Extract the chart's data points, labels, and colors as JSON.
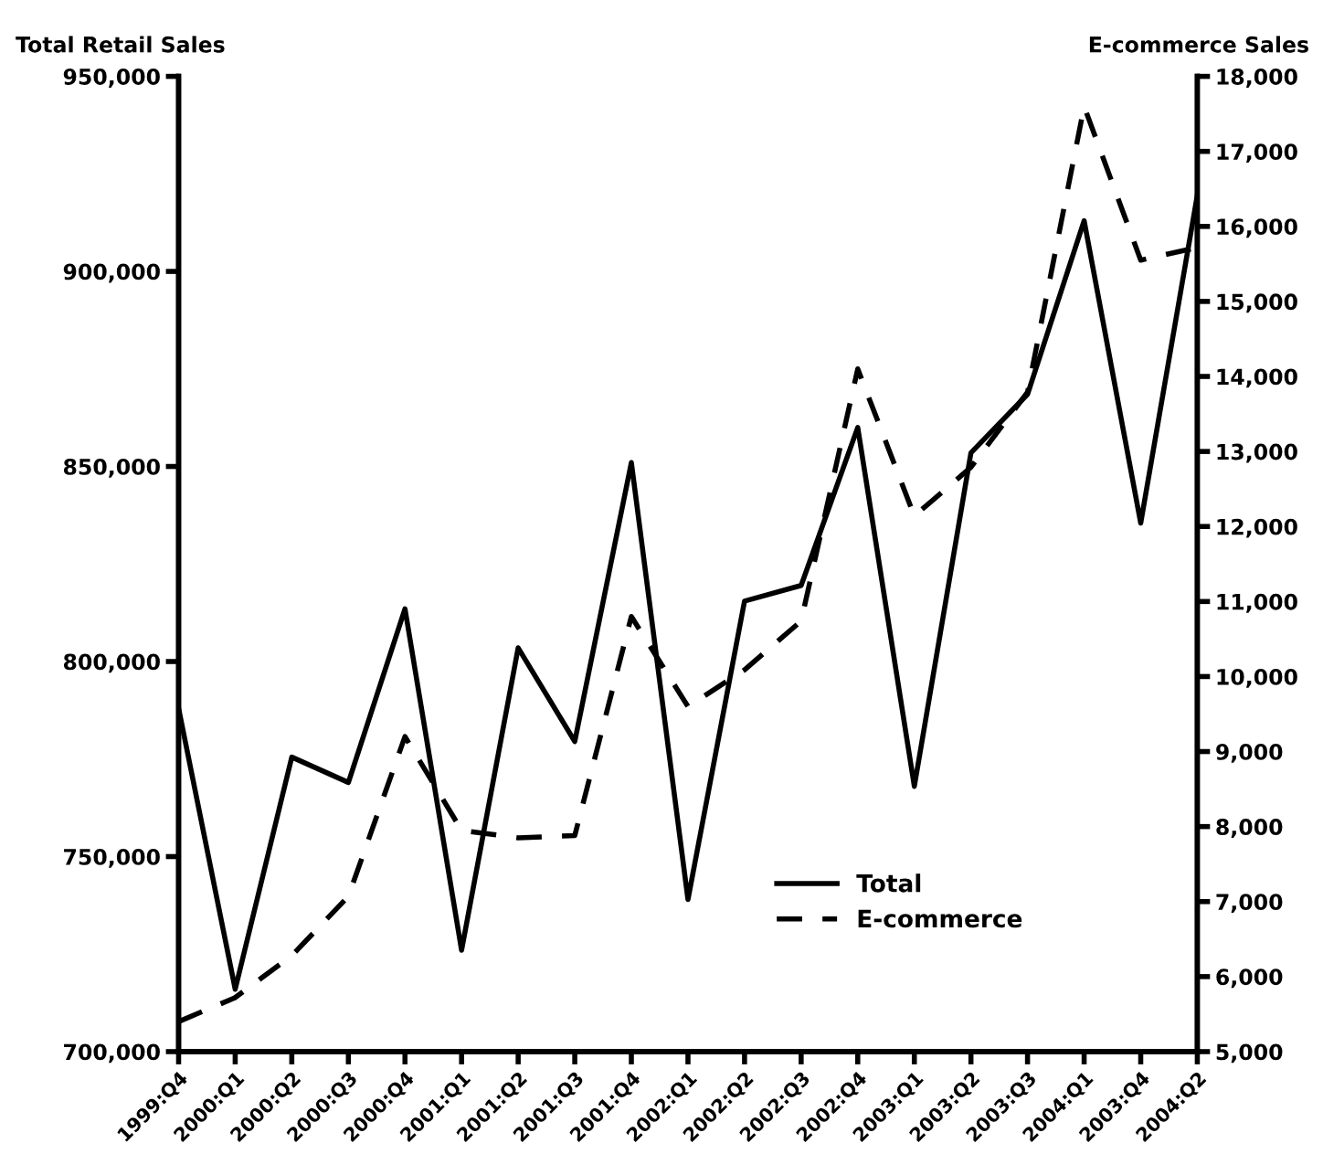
{
  "chart_data": {
    "type": "line",
    "ylabel": "Total Retail Sales",
    "y2label": "E-commerce Sales",
    "categories": [
      "1999:Q4",
      "2000:Q1",
      "2000:Q2",
      "2000:Q3",
      "2000:Q4",
      "2001:Q1",
      "2001:Q2",
      "2001:Q3",
      "2001:Q4",
      "2002:Q1",
      "2002:Q2",
      "2002:Q3",
      "2002:Q4",
      "2003:Q1",
      "2003:Q2",
      "2003:Q3",
      "2004:Q1",
      "2003:Q4",
      "2004:Q2"
    ],
    "series": [
      {
        "name": "Total",
        "color": "#000000",
        "line_style": "solid",
        "values": [
          788000,
          716000,
          775500,
          769000,
          813500,
          726000,
          803500,
          779500,
          851000,
          739000,
          815500,
          819500,
          860000,
          768000,
          853500,
          868500,
          913000,
          835500,
          919500
        ]
      },
      {
        "name": "E-commerce",
        "color": "#000000",
        "line_style": "dashed",
        "axis": "y2",
        "values": [
          5400,
          5720,
          6280,
          7070,
          9200,
          7950,
          7850,
          7880,
          10800,
          9600,
          10090,
          10740,
          14100,
          12140,
          12790,
          13790,
          17600,
          15550,
          15720
        ]
      }
    ],
    "ylim": [
      700000,
      950000
    ],
    "yticks": [
      {
        "value": 700000,
        "label": "700,000"
      },
      {
        "value": 750000,
        "label": "750,000"
      },
      {
        "value": 800000,
        "label": "800,000"
      },
      {
        "value": 850000,
        "label": "850,000"
      },
      {
        "value": 900000,
        "label": "900,000"
      },
      {
        "value": 950000,
        "label": "950,000"
      }
    ],
    "y2lim": [
      5000,
      18000
    ],
    "y2ticks": [
      {
        "value": 5000,
        "label": "5,000"
      },
      {
        "value": 6000,
        "label": "6,000"
      },
      {
        "value": 7000,
        "label": "7,000"
      },
      {
        "value": 8000,
        "label": "8,000"
      },
      {
        "value": 9000,
        "label": "9,000"
      },
      {
        "value": 10000,
        "label": "10,000"
      },
      {
        "value": 11000,
        "label": "11,000"
      },
      {
        "value": 12000,
        "label": "12,000"
      },
      {
        "value": 13000,
        "label": "13,000"
      },
      {
        "value": 14000,
        "label": "14,000"
      },
      {
        "value": 15000,
        "label": "15,000"
      },
      {
        "value": 16000,
        "label": "16,000"
      },
      {
        "value": 17000,
        "label": "17,000"
      },
      {
        "value": 18000,
        "label": "18,000"
      }
    ],
    "grid": false,
    "legend": "bottom right",
    "marker": "none"
  }
}
